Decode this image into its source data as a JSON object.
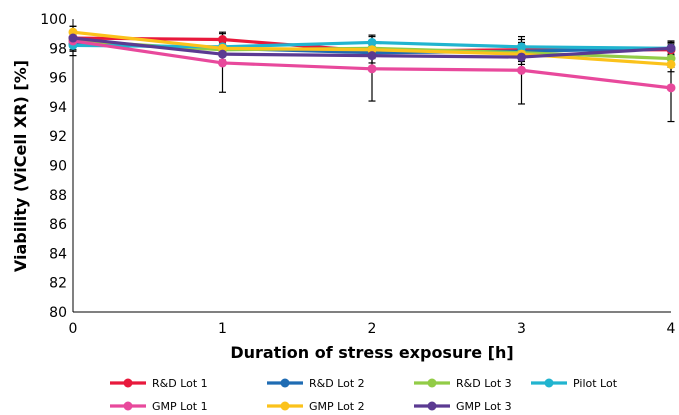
{
  "chart_data": {
    "type": "line",
    "xlabel": "Duration of stress exposure [h]",
    "ylabel": "Viability (ViCell XR) [%]",
    "x": [
      0,
      1,
      2,
      3,
      4
    ],
    "xlim": [
      0,
      4
    ],
    "ylim": [
      80,
      100
    ],
    "yticks": [
      80,
      82,
      84,
      86,
      88,
      90,
      92,
      94,
      96,
      98,
      100
    ],
    "xticks": [
      0,
      1,
      2,
      3,
      4
    ],
    "grid": false,
    "legend_position": "bottom",
    "series": [
      {
        "name": "R&D Lot 1",
        "color": "#e8193c",
        "values": [
          98.7,
          98.6,
          97.8,
          97.9,
          97.9
        ],
        "err": [
          0.3,
          0.5,
          0.3,
          0.5,
          0.4
        ]
      },
      {
        "name": "R&D Lot 2",
        "color": "#1f6cb3",
        "values": [
          98.3,
          98.0,
          97.7,
          97.8,
          98.0
        ],
        "err": [
          0.4,
          0.4,
          0.4,
          0.5,
          0.4
        ]
      },
      {
        "name": "R&D Lot 3",
        "color": "#92cc47",
        "values": [
          98.5,
          97.9,
          98.0,
          97.7,
          97.3
        ],
        "err": [
          0.4,
          0.4,
          0.4,
          0.5,
          0.6
        ]
      },
      {
        "name": "Pilot Lot",
        "color": "#21b4cf",
        "values": [
          98.2,
          98.1,
          98.4,
          98.1,
          98.0
        ],
        "err": [
          0.4,
          0.4,
          0.5,
          0.5,
          0.4
        ]
      },
      {
        "name": "GMP Lot 1",
        "color": "#e8499c",
        "values": [
          98.5,
          97.0,
          96.6,
          96.5,
          95.3
        ],
        "err": [
          1.0,
          2.0,
          2.2,
          2.3,
          2.3
        ]
      },
      {
        "name": "GMP Lot 2",
        "color": "#fbc21b",
        "values": [
          99.1,
          98.0,
          97.9,
          97.6,
          96.9
        ],
        "err": [
          0.4,
          0.4,
          0.4,
          0.5,
          0.5
        ]
      },
      {
        "name": "GMP Lot 3",
        "color": "#5b3a92",
        "values": [
          98.7,
          97.6,
          97.5,
          97.4,
          98.0
        ],
        "err": [
          0.4,
          0.4,
          0.5,
          0.5,
          0.5
        ]
      }
    ]
  }
}
